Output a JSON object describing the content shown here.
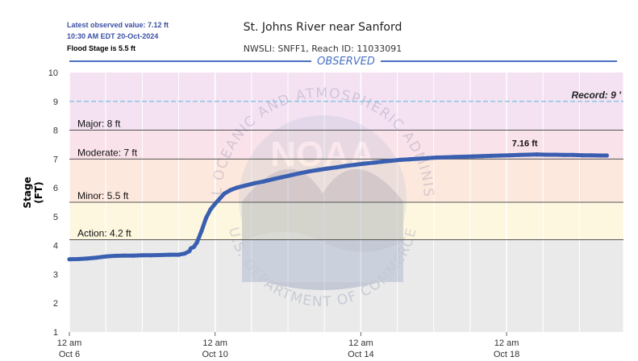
{
  "header": {
    "latest_value_text": "Latest observed value: 7.12 ft",
    "latest_time_text": "10:30 AM EDT 20-Oct-2024",
    "flood_stage_text": "Flood Stage is 5.5 ft",
    "title": "St. Johns River near Sanford",
    "subtitle": "NWSLI: SNFF1, Reach ID: 11033091",
    "section_label": "OBSERVED"
  },
  "watermark": {
    "arc_top_text": "NATIONAL OCEANIC AND ATMOSPHERIC ADMINISTRATION",
    "arc_bottom_text": "U.S. DEPARTMENT OF COMMERCE",
    "logo_text": "NOAA"
  },
  "colors": {
    "series": "#3a5fb0",
    "title_rule": "#4a70c0",
    "record_band": "#f4e2f2",
    "major_band": "#f9e2e9",
    "moderate_band": "#fde8de",
    "minor_band": "#fdf7e0",
    "action_band": "#fdfde6",
    "normal_band": "#eaeaea",
    "record_line": "#88c8e6",
    "threshold_line": "#555555"
  },
  "chart_data": {
    "type": "line",
    "title": "St. Johns River near Sanford",
    "subtitle": "NWSLI: SNFF1, Reach ID: 11033091",
    "xlabel": "",
    "ylabel": "Stage (FT)",
    "ylim": [
      1,
      10
    ],
    "yticks": [
      1,
      2,
      3,
      4,
      5,
      6,
      7,
      8,
      9,
      10
    ],
    "xlim": [
      0,
      365
    ],
    "x_unit": "hours after 12 am Oct 6",
    "xticks": [
      {
        "x": 0,
        "line1": "12 am",
        "line2": "Oct 6"
      },
      {
        "x": 96,
        "line1": "12 am",
        "line2": "Oct 10"
      },
      {
        "x": 192,
        "line1": "12 am",
        "line2": "Oct 14"
      },
      {
        "x": 288,
        "line1": "12 am",
        "line2": "Oct 18"
      }
    ],
    "grid_days_x": [
      24,
      48,
      72,
      120,
      144,
      168,
      216,
      240,
      264,
      312,
      336
    ],
    "thresholds": [
      {
        "name": "Record",
        "label": "Record: 9 '",
        "value": 9
      },
      {
        "name": "Major",
        "label": "Major: 8 ft",
        "value": 8
      },
      {
        "name": "Moderate",
        "label": "Moderate: 7 ft",
        "value": 7
      },
      {
        "name": "Minor",
        "label": "Minor: 5.5 ft",
        "value": 5.5
      },
      {
        "name": "Action",
        "label": "Action: 4.2 ft",
        "value": 4.2
      }
    ],
    "peak_annotation": {
      "text": "7.16 ft",
      "x": 300,
      "y": 7.16
    },
    "series": [
      {
        "points": [
          [
            0,
            3.52
          ],
          [
            6,
            3.53
          ],
          [
            12,
            3.55
          ],
          [
            18,
            3.58
          ],
          [
            24,
            3.62
          ],
          [
            30,
            3.64
          ],
          [
            36,
            3.65
          ],
          [
            42,
            3.65
          ],
          [
            48,
            3.66
          ],
          [
            54,
            3.66
          ],
          [
            60,
            3.67
          ],
          [
            66,
            3.68
          ],
          [
            72,
            3.68
          ],
          [
            76,
            3.72
          ],
          [
            79,
            3.8
          ],
          [
            80,
            3.9
          ],
          [
            82,
            3.95
          ],
          [
            84,
            4.1
          ],
          [
            87,
            4.5
          ],
          [
            90,
            4.95
          ],
          [
            93,
            5.25
          ],
          [
            96,
            5.45
          ],
          [
            99,
            5.62
          ],
          [
            102,
            5.8
          ],
          [
            106,
            5.92
          ],
          [
            110,
            6.0
          ],
          [
            116,
            6.08
          ],
          [
            122,
            6.16
          ],
          [
            128,
            6.22
          ],
          [
            134,
            6.3
          ],
          [
            140,
            6.37
          ],
          [
            146,
            6.44
          ],
          [
            152,
            6.51
          ],
          [
            158,
            6.57
          ],
          [
            164,
            6.62
          ],
          [
            170,
            6.67
          ],
          [
            176,
            6.71
          ],
          [
            182,
            6.76
          ],
          [
            188,
            6.8
          ],
          [
            194,
            6.84
          ],
          [
            200,
            6.87
          ],
          [
            206,
            6.91
          ],
          [
            212,
            6.94
          ],
          [
            218,
            6.97
          ],
          [
            224,
            6.99
          ],
          [
            230,
            7.01
          ],
          [
            236,
            7.03
          ],
          [
            242,
            7.05
          ],
          [
            248,
            7.06
          ],
          [
            254,
            7.07
          ],
          [
            260,
            7.08
          ],
          [
            266,
            7.09
          ],
          [
            272,
            7.1
          ],
          [
            278,
            7.11
          ],
          [
            284,
            7.12
          ],
          [
            290,
            7.13
          ],
          [
            296,
            7.14
          ],
          [
            302,
            7.15
          ],
          [
            308,
            7.16
          ],
          [
            314,
            7.15
          ],
          [
            320,
            7.15
          ],
          [
            326,
            7.14
          ],
          [
            332,
            7.14
          ],
          [
            338,
            7.13
          ],
          [
            344,
            7.13
          ],
          [
            350,
            7.12
          ],
          [
            354,
            7.12
          ]
        ]
      }
    ]
  }
}
